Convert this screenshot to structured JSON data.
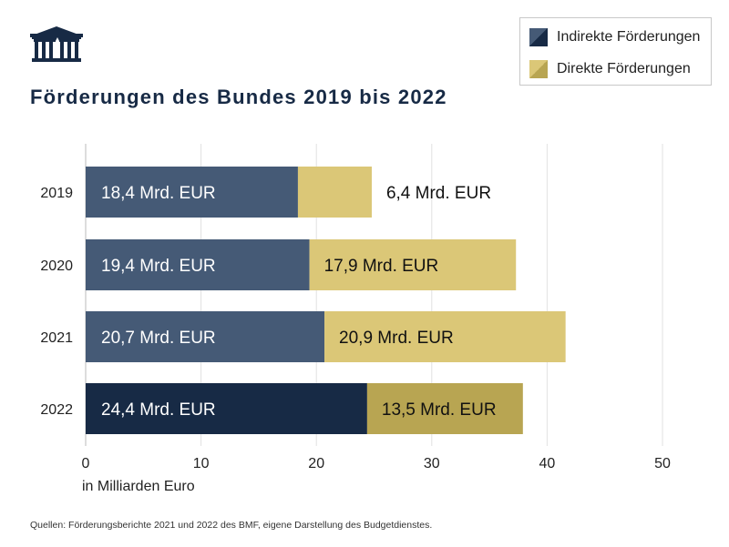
{
  "logo": {
    "icon": "parliament-building-logo"
  },
  "chart_data": {
    "type": "bar",
    "orientation": "horizontal",
    "stacked": true,
    "title": "Förderungen des Bundes 2019 bis 2022",
    "xlabel": "in Milliarden Euro",
    "ylabel": "",
    "xlim": [
      0,
      50
    ],
    "xticks": [
      "0",
      "10",
      "20",
      "30",
      "40",
      "50"
    ],
    "grid": true,
    "legend_position": "top-right",
    "categories": [
      "2019",
      "2020",
      "2021",
      "2022"
    ],
    "series": [
      {
        "name": "Indirekte Förderungen",
        "values": [
          18.4,
          19.4,
          20.7,
          24.4
        ],
        "labels": [
          "18,4 Mrd. EUR",
          "19,4 Mrd. EUR",
          "20,7 Mrd. EUR",
          "24,4 Mrd. EUR"
        ],
        "color": "#455a76",
        "highlight_color": "#172a45"
      },
      {
        "name": "Direkte Förderungen",
        "values": [
          6.4,
          17.9,
          20.9,
          13.5
        ],
        "labels": [
          "6,4 Mrd. EUR",
          "17,9 Mrd. EUR",
          "20,9 Mrd. EUR",
          "13,5 Mrd. EUR"
        ],
        "color": "#dbc777",
        "highlight_color": "#b8a552"
      }
    ]
  },
  "source": "Quellen: Förderungsberichte 2021 und 2022 des BMF, eigene Darstellung des Budgetdienstes."
}
